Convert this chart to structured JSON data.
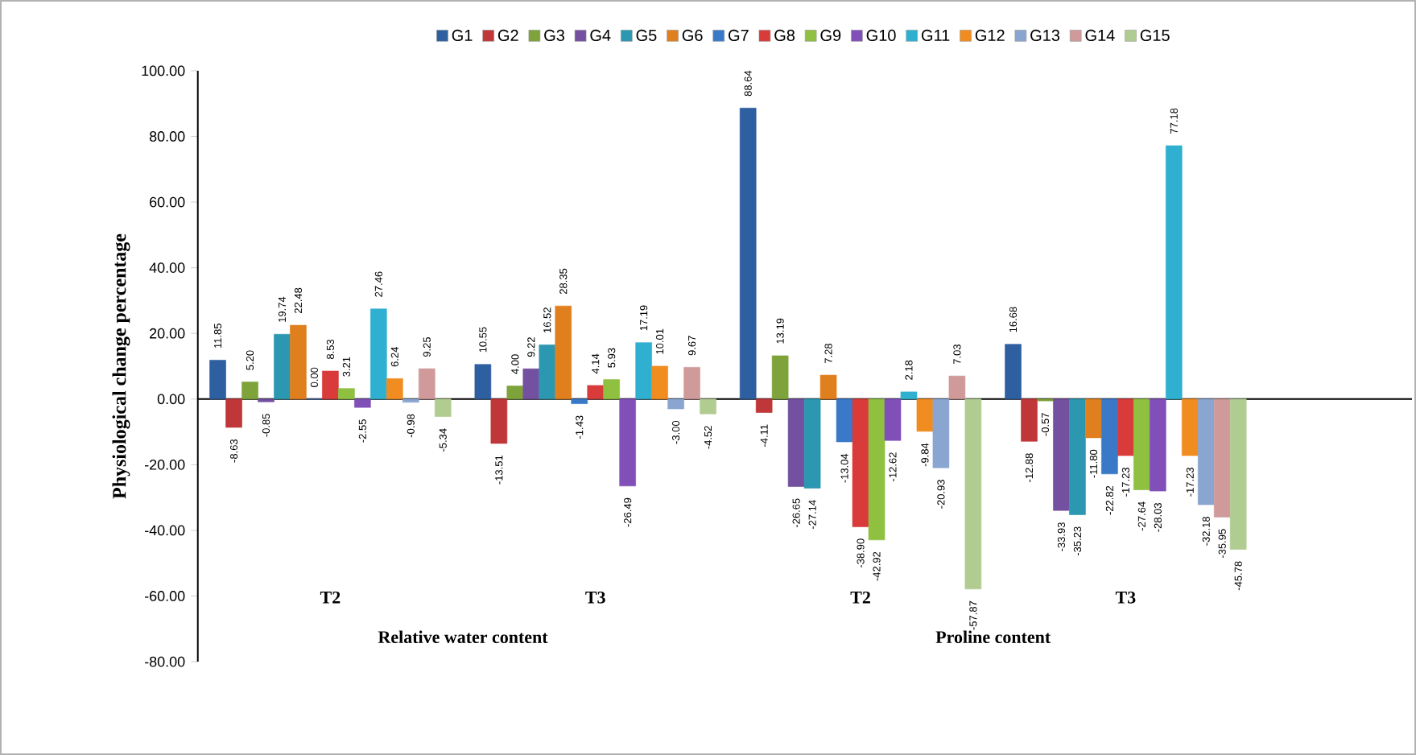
{
  "chart_data": {
    "type": "bar",
    "ylabel": "Physiological change percentage",
    "categories": [
      "T2",
      "T3",
      "T2",
      "T3"
    ],
    "annotations": [
      "Relative water content",
      "Proline content"
    ],
    "ylim": [
      -80,
      100
    ],
    "yticks": [
      {
        "value": -80,
        "label": "-80.00"
      },
      {
        "value": -60,
        "label": "-60.00"
      },
      {
        "value": -40,
        "label": "-40.00"
      },
      {
        "value": -20,
        "label": "-20.00"
      },
      {
        "value": 0,
        "label": "0.00"
      },
      {
        "value": 20,
        "label": "20.00"
      },
      {
        "value": 40,
        "label": "40.00"
      },
      {
        "value": 60,
        "label": "60.00"
      },
      {
        "value": 80,
        "label": "80.00"
      },
      {
        "value": 100,
        "label": "100.00"
      }
    ],
    "legend": "top",
    "series": [
      {
        "name": "G1",
        "color": "#2e5fa0",
        "values": [
          11.85,
          10.55,
          88.64,
          16.68
        ],
        "value_labels": [
          "11.85",
          "10.55",
          "88.64",
          "16.68"
        ]
      },
      {
        "name": "G2",
        "color": "#c0373a",
        "values": [
          -8.63,
          -13.51,
          -4.11,
          -12.88
        ],
        "value_labels": [
          "-8.63",
          "-13.51",
          "-4.11",
          "-12.88"
        ]
      },
      {
        "name": "G3",
        "color": "#7ea33a",
        "values": [
          5.2,
          4.0,
          13.19,
          -0.57
        ],
        "value_labels": [
          "5.20",
          "4.00",
          "13.19",
          "-0.57"
        ]
      },
      {
        "name": "G4",
        "color": "#7350a0",
        "values": [
          -0.85,
          9.22,
          -26.65,
          -33.93
        ],
        "value_labels": [
          "-0.85",
          "9.22",
          "-26.65",
          "-33.93"
        ]
      },
      {
        "name": "G5",
        "color": "#2b97b0",
        "values": [
          19.74,
          16.52,
          -27.14,
          -35.23
        ],
        "value_labels": [
          "19.74",
          "16.52",
          "-27.14",
          "-35.23"
        ]
      },
      {
        "name": "G6",
        "color": "#e07f1e",
        "values": [
          22.48,
          28.35,
          7.28,
          -11.8
        ],
        "value_labels": [
          "22.48",
          "28.35",
          "7.28",
          "-11.80"
        ]
      },
      {
        "name": "G7",
        "color": "#3a78c8",
        "values": [
          0.0,
          -1.43,
          -13.04,
          -22.82
        ],
        "value_labels": [
          "0.00",
          "-1.43",
          "-13.04",
          "-22.82"
        ]
      },
      {
        "name": "G8",
        "color": "#d93a3a",
        "values": [
          8.53,
          4.14,
          -38.9,
          -17.23
        ],
        "value_labels": [
          "8.53",
          "4.14",
          "-38.90",
          "-17.23"
        ]
      },
      {
        "name": "G9",
        "color": "#8fc040",
        "values": [
          3.21,
          5.93,
          -42.92,
          -27.64
        ],
        "value_labels": [
          "3.21",
          "5.93",
          "-42.92",
          "-27.64"
        ]
      },
      {
        "name": "G10",
        "color": "#8050b8",
        "values": [
          -2.55,
          -26.49,
          -12.62,
          -28.03
        ],
        "value_labels": [
          "-2.55",
          "-26.49",
          "-12.62",
          "-28.03"
        ]
      },
      {
        "name": "G11",
        "color": "#30b0d0",
        "values": [
          27.46,
          17.19,
          2.18,
          77.18
        ],
        "value_labels": [
          "27.46",
          "17.19",
          "2.18",
          "77.18"
        ]
      },
      {
        "name": "G12",
        "color": "#f08c20",
        "values": [
          6.24,
          10.01,
          -9.84,
          -17.23
        ],
        "value_labels": [
          "6.24",
          "10.01",
          "-9.84",
          "-17.23"
        ]
      },
      {
        "name": "G13",
        "color": "#8aa6d0",
        "values": [
          -0.98,
          -3.0,
          -20.93,
          -32.18
        ],
        "value_labels": [
          "-0.98",
          "-3.00",
          "-20.93",
          "-32.18"
        ]
      },
      {
        "name": "G14",
        "color": "#d09a9a",
        "values": [
          9.25,
          9.67,
          7.03,
          -35.95
        ],
        "value_labels": [
          "9.25",
          "9.67",
          "7.03",
          "-35.95"
        ]
      },
      {
        "name": "G15",
        "color": "#b0cc90",
        "values": [
          -5.34,
          -4.52,
          -57.87,
          -45.78
        ],
        "value_labels": [
          "-5.34",
          "-4.52",
          "-57.87",
          "-45.78"
        ]
      }
    ]
  }
}
